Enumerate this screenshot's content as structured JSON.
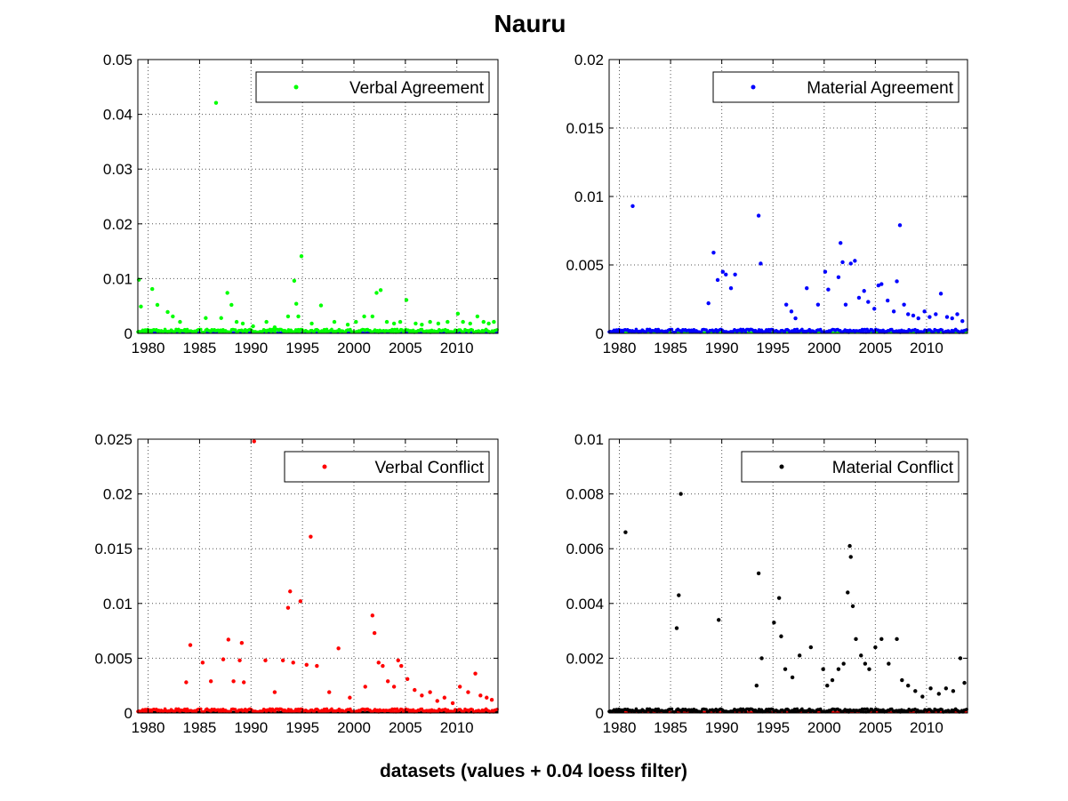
{
  "figure": {
    "title": "Nauru",
    "xlabel": "datasets (values + 0.04 loess filter)"
  },
  "chart_data": [
    {
      "type": "scatter",
      "xlim": [
        1979,
        2014
      ],
      "ylim": [
        0,
        0.05
      ],
      "xticks": [
        1980,
        1985,
        1990,
        1995,
        2000,
        2005,
        2010
      ],
      "yticks": [
        0,
        0.01,
        0.02,
        0.03,
        0.04,
        0.05
      ],
      "ytick_labels": [
        "0",
        "0.01",
        "0.02",
        "0.03",
        "0.04",
        "0.05"
      ],
      "grid": true,
      "legend": "top-right",
      "series": [
        {
          "name": "Verbal Agreement",
          "color": "#00ff00",
          "marker": "dot",
          "x": [
            1979.1,
            1979.3,
            1980.4,
            1980.9,
            1981.9,
            1982.4,
            1983.1,
            1985.6,
            1986.6,
            1987.1,
            1987.7,
            1988.1,
            1988.6,
            1989.2,
            1990.2,
            1991.5,
            1992.3,
            1993.6,
            1994.2,
            1994.4,
            1994.6,
            1994.9,
            1995.9,
            1996.8,
            1998.1,
            1999.4,
            2000.2,
            2001.0,
            2001.8,
            2002.2,
            2002.6,
            2003.2,
            2003.9,
            2004.5,
            2005.1,
            2006.0,
            2006.6,
            2007.4,
            2008.2,
            2009.1,
            2010.1,
            2010.6,
            2011.3,
            2012.0,
            2012.6,
            2013.1,
            2013.6
          ],
          "y": [
            0.0098,
            0.0049,
            0.0081,
            0.0052,
            0.0039,
            0.0031,
            0.0021,
            0.0028,
            0.0421,
            0.0028,
            0.0074,
            0.0052,
            0.0021,
            0.0018,
            0.0013,
            0.0021,
            0.0011,
            0.0031,
            0.0096,
            0.0054,
            0.0031,
            0.0141,
            0.0018,
            0.0051,
            0.0021,
            0.0016,
            0.0021,
            0.0031,
            0.0031,
            0.0074,
            0.0079,
            0.0021,
            0.0018,
            0.0021,
            0.0061,
            0.0018,
            0.0016,
            0.0021,
            0.0018,
            0.0021,
            0.0036,
            0.0021,
            0.0018,
            0.0031,
            0.0021,
            0.0018,
            0.0021
          ]
        }
      ],
      "baseline_color": "#0000ff"
    },
    {
      "type": "scatter",
      "xlim": [
        1979,
        2014
      ],
      "ylim": [
        0,
        0.02
      ],
      "xticks": [
        1980,
        1985,
        1990,
        1995,
        2000,
        2005,
        2010
      ],
      "yticks": [
        0,
        0.005,
        0.01,
        0.015,
        0.02
      ],
      "ytick_labels": [
        "0",
        "0.005",
        "0.01",
        "0.015",
        "0.02"
      ],
      "grid": true,
      "legend": "top-right",
      "series": [
        {
          "name": "Material Agreement",
          "color": "#0000ff",
          "marker": "dot",
          "x": [
            1981.3,
            1988.7,
            1989.2,
            1989.6,
            1990.1,
            1990.4,
            1990.9,
            1991.3,
            1993.6,
            1993.8,
            1996.3,
            1996.8,
            1997.2,
            1998.3,
            1999.4,
            2000.1,
            2000.4,
            2001.4,
            2001.6,
            2001.8,
            2002.1,
            2002.6,
            2003.0,
            2003.4,
            2003.9,
            2004.3,
            2004.9,
            2005.3,
            2005.6,
            2006.2,
            2006.8,
            2007.1,
            2007.4,
            2007.8,
            2008.2,
            2008.7,
            2009.2,
            2009.8,
            2010.3,
            2010.9,
            2011.4,
            2012.0,
            2012.5,
            2013.0,
            2013.5
          ],
          "y": [
            0.0093,
            0.0022,
            0.0059,
            0.0039,
            0.0045,
            0.0043,
            0.0033,
            0.0043,
            0.0086,
            0.0051,
            0.0021,
            0.0016,
            0.0011,
            0.0033,
            0.0021,
            0.0045,
            0.0032,
            0.0041,
            0.0066,
            0.0052,
            0.0021,
            0.0051,
            0.0053,
            0.0026,
            0.0031,
            0.0023,
            0.0018,
            0.0035,
            0.0036,
            0.0024,
            0.0016,
            0.0038,
            0.0079,
            0.0021,
            0.0014,
            0.0013,
            0.0011,
            0.0016,
            0.0012,
            0.0014,
            0.0029,
            0.0012,
            0.0011,
            0.0014,
            0.0009
          ]
        }
      ],
      "baseline_color": "#00ff00"
    },
    {
      "type": "scatter",
      "xlim": [
        1979,
        2014
      ],
      "ylim": [
        0,
        0.025
      ],
      "xticks": [
        1980,
        1985,
        1990,
        1995,
        2000,
        2005,
        2010
      ],
      "yticks": [
        0,
        0.005,
        0.01,
        0.015,
        0.02,
        0.025
      ],
      "ytick_labels": [
        "0",
        "0.005",
        "0.01",
        "0.015",
        "0.02",
        "0.025"
      ],
      "grid": true,
      "legend": "top-right",
      "series": [
        {
          "name": "Verbal Conflict",
          "color": "#ff0000",
          "marker": "dot",
          "x": [
            1983.7,
            1984.1,
            1985.3,
            1986.1,
            1987.3,
            1987.8,
            1988.3,
            1988.9,
            1989.1,
            1989.3,
            1990.3,
            1991.4,
            1992.3,
            1993.1,
            1993.6,
            1993.8,
            1994.1,
            1994.8,
            1995.4,
            1995.8,
            1996.4,
            1997.6,
            1998.5,
            1999.6,
            2001.1,
            2001.8,
            2002.0,
            2002.4,
            2002.8,
            2003.3,
            2003.9,
            2004.3,
            2004.6,
            2005.2,
            2005.9,
            2006.6,
            2007.4,
            2008.1,
            2008.8,
            2009.6,
            2010.3,
            2011.1,
            2011.8,
            2012.3,
            2012.9,
            2013.4
          ],
          "y": [
            0.0028,
            0.0062,
            0.0046,
            0.0029,
            0.0049,
            0.0067,
            0.0029,
            0.0048,
            0.0064,
            0.0028,
            0.0248,
            0.0048,
            0.0019,
            0.0048,
            0.0096,
            0.0111,
            0.0046,
            0.0102,
            0.0044,
            0.0161,
            0.0043,
            0.0019,
            0.0059,
            0.0014,
            0.0024,
            0.0089,
            0.0073,
            0.0046,
            0.0043,
            0.0029,
            0.0024,
            0.0048,
            0.0043,
            0.0031,
            0.0021,
            0.0016,
            0.0019,
            0.0011,
            0.0014,
            0.0009,
            0.0024,
            0.0019,
            0.0036,
            0.0016,
            0.0014,
            0.0012
          ]
        }
      ],
      "baseline_color": "#000000"
    },
    {
      "type": "scatter",
      "xlim": [
        1979,
        2014
      ],
      "ylim": [
        0,
        0.01
      ],
      "xticks": [
        1980,
        1985,
        1990,
        1995,
        2000,
        2005,
        2010
      ],
      "yticks": [
        0,
        0.002,
        0.004,
        0.006,
        0.008,
        0.01
      ],
      "ytick_labels": [
        "0",
        "0.002",
        "0.004",
        "0.006",
        "0.008",
        "0.01"
      ],
      "grid": true,
      "legend": "top-right",
      "series": [
        {
          "name": "Material Conflict",
          "color": "#000000",
          "marker": "dot",
          "x": [
            1980.6,
            1985.6,
            1985.8,
            1986.0,
            1989.7,
            1993.4,
            1993.6,
            1993.9,
            1995.1,
            1995.6,
            1995.8,
            1996.2,
            1996.9,
            1997.6,
            1998.7,
            1999.9,
            2000.3,
            2000.8,
            2001.4,
            2001.9,
            2002.3,
            2002.5,
            2002.6,
            2002.8,
            2003.1,
            2003.6,
            2004.0,
            2004.4,
            2005.0,
            2005.6,
            2006.3,
            2007.1,
            2007.6,
            2008.2,
            2008.9,
            2009.6,
            2010.4,
            2011.2,
            2011.9,
            2012.6,
            2013.3,
            2013.7
          ],
          "y": [
            0.0066,
            0.0031,
            0.0043,
            0.008,
            0.0034,
            0.001,
            0.0051,
            0.002,
            0.0033,
            0.0042,
            0.0028,
            0.0016,
            0.0013,
            0.0021,
            0.0024,
            0.0016,
            0.001,
            0.0012,
            0.0016,
            0.0018,
            0.0044,
            0.0061,
            0.0057,
            0.0039,
            0.0027,
            0.0021,
            0.0018,
            0.0016,
            0.0024,
            0.0027,
            0.0018,
            0.0027,
            0.0012,
            0.001,
            0.0008,
            0.0006,
            0.0009,
            0.0007,
            0.0009,
            0.0008,
            0.002,
            0.0011
          ]
        }
      ],
      "baseline_color": "#ff0000"
    }
  ]
}
